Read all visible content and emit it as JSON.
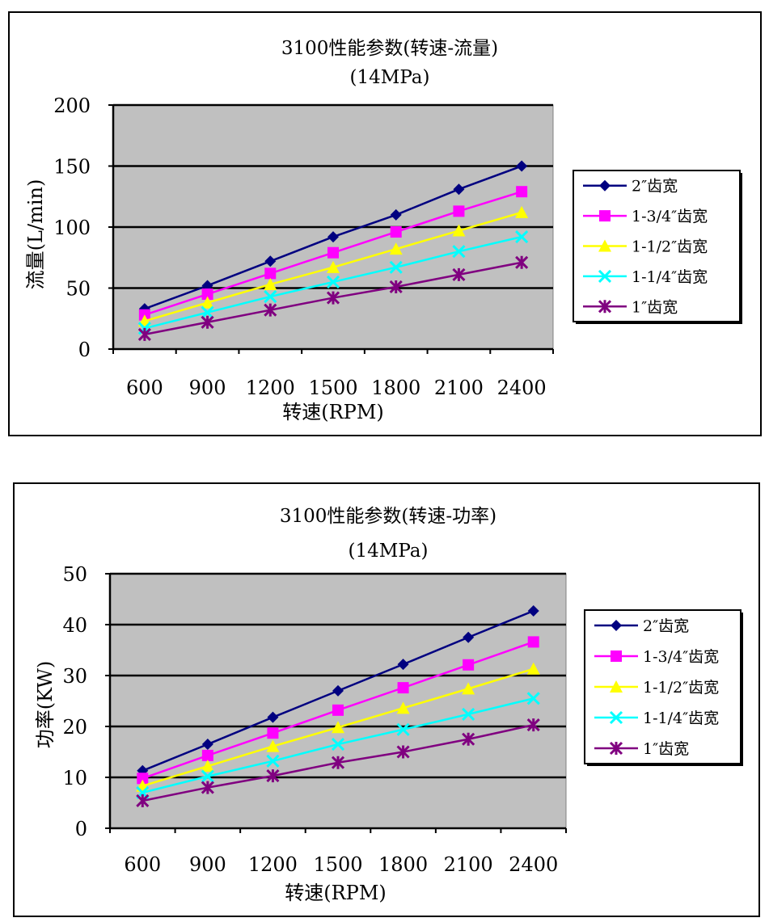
{
  "chart_data": [
    {
      "type": "line",
      "title": "3100性能参数(转速-流量)",
      "subtitle": "(14MPa)",
      "xlabel": "转速(RPM)",
      "ylabel": "流量(L/min)",
      "categories": [
        "600",
        "900",
        "1200",
        "1500",
        "1800",
        "2100",
        "2400"
      ],
      "ylim": [
        0,
        200
      ],
      "yticks": [
        "0",
        "50",
        "100",
        "150",
        "200"
      ],
      "grid": true,
      "legend": "right",
      "series": [
        {
          "name": "2″齿宽",
          "color": "#000080",
          "marker": "diamond",
          "values": [
            33,
            52,
            72,
            92,
            110,
            131,
            150
          ]
        },
        {
          "name": "1-3/4″齿宽",
          "color": "#ff00ff",
          "marker": "square",
          "values": [
            28,
            45,
            62,
            79,
            96,
            113,
            129
          ]
        },
        {
          "name": "1-1/2″齿宽",
          "color": "#ffff00",
          "marker": "triangle",
          "values": [
            23,
            38,
            53,
            67,
            82,
            97,
            112
          ]
        },
        {
          "name": "1-1/4″齿宽",
          "color": "#00ffff",
          "marker": "x",
          "values": [
            17,
            30,
            43,
            55,
            67,
            80,
            92
          ]
        },
        {
          "name": "1″齿宽",
          "color": "#800080",
          "marker": "star",
          "values": [
            12,
            22,
            32,
            42,
            51,
            61,
            71
          ]
        }
      ]
    },
    {
      "type": "line",
      "title": "3100性能参数(转速-功率)",
      "subtitle": "(14MPa)",
      "xlabel": "转速(RPM)",
      "ylabel": "功率(KW)",
      "categories": [
        "600",
        "900",
        "1200",
        "1500",
        "1800",
        "2100",
        "2400"
      ],
      "ylim": [
        0,
        50
      ],
      "yticks": [
        "0",
        "10",
        "20",
        "30",
        "40",
        "50"
      ],
      "grid": true,
      "legend": "right",
      "series": [
        {
          "name": "2″齿宽",
          "color": "#000080",
          "marker": "diamond",
          "values": [
            11.3,
            16.5,
            21.8,
            27,
            32.2,
            37.5,
            42.7
          ]
        },
        {
          "name": "1-3/4″齿宽",
          "color": "#ff00ff",
          "marker": "square",
          "values": [
            9.8,
            14.3,
            18.7,
            23.2,
            27.6,
            32.1,
            36.6
          ]
        },
        {
          "name": "1-1/2″齿宽",
          "color": "#ffff00",
          "marker": "triangle",
          "values": [
            8.3,
            12.2,
            16.1,
            19.8,
            23.6,
            27.4,
            31.3
          ]
        },
        {
          "name": "1-1/4″齿宽",
          "color": "#00ffff",
          "marker": "x",
          "values": [
            7,
            10.2,
            13.2,
            16.5,
            19.4,
            22.4,
            25.5
          ]
        },
        {
          "name": "1″齿宽",
          "color": "#800080",
          "marker": "star",
          "values": [
            5.4,
            8,
            10.3,
            12.9,
            15,
            17.5,
            20.3
          ]
        }
      ]
    }
  ]
}
